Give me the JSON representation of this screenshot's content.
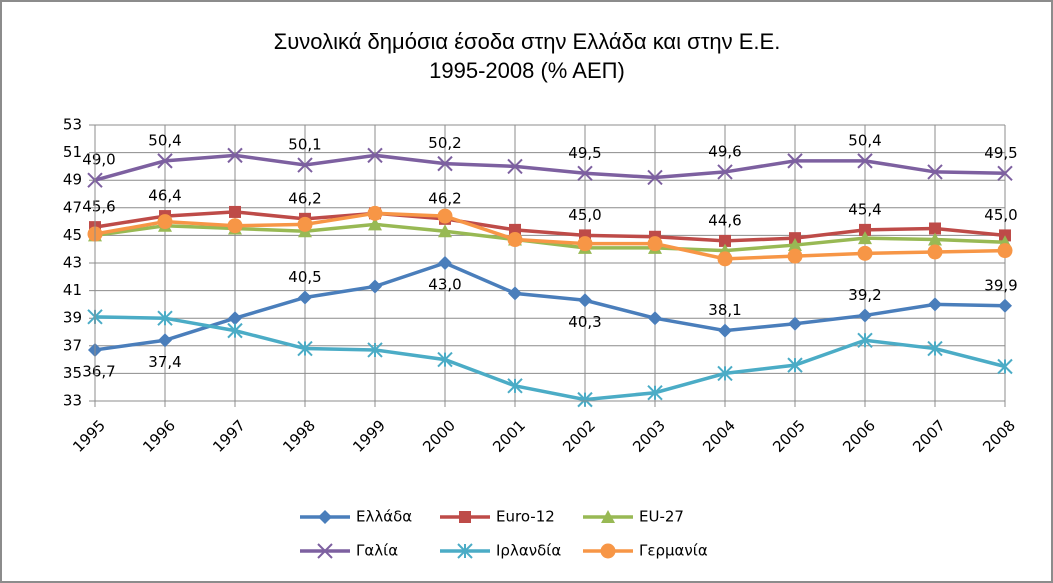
{
  "chart_data": {
    "type": "line",
    "title": "Συνολικά δημόσια έσοδα στην Ελλάδα και στην Ε.Ε.",
    "subtitle": "1995-2008 (% ΑΕΠ)",
    "categories": [
      "1995",
      "1996",
      "1997",
      "1998",
      "1999",
      "2000",
      "2001",
      "2002",
      "2003",
      "2004",
      "2005",
      "2006",
      "2007",
      "2008"
    ],
    "ylim": [
      33,
      53
    ],
    "yticks": [
      33,
      35,
      37,
      39,
      41,
      43,
      45,
      47,
      49,
      51,
      53
    ],
    "grid": true,
    "legend": "bottom",
    "series": [
      {
        "name": "Ελλάδα",
        "color": "#4a7ebb",
        "marker": "diamond",
        "values": [
          36.7,
          37.4,
          39.0,
          40.5,
          41.3,
          43.0,
          40.8,
          40.3,
          39.0,
          38.1,
          38.6,
          39.2,
          40.0,
          39.9
        ],
        "value_labels": [
          "36,7",
          "37,4",
          null,
          "40,5",
          null,
          "43,0",
          null,
          "40,3",
          null,
          "38,1",
          null,
          "39,2",
          null,
          "39,9"
        ]
      },
      {
        "name": "Euro-12",
        "color": "#be4b48",
        "marker": "square",
        "values": [
          45.6,
          46.4,
          46.7,
          46.2,
          46.6,
          46.2,
          45.4,
          45.0,
          44.9,
          44.6,
          44.8,
          45.4,
          45.5,
          45.0
        ],
        "value_labels": [
          "45,6",
          "46,4",
          null,
          "46,2",
          null,
          "46,2",
          null,
          "45,0",
          null,
          "44,6",
          null,
          "45,4",
          null,
          "45,0"
        ]
      },
      {
        "name": "EU-27",
        "color": "#98b954",
        "marker": "triangle",
        "values": [
          45.0,
          45.7,
          45.5,
          45.3,
          45.8,
          45.3,
          44.7,
          44.1,
          44.1,
          43.9,
          44.3,
          44.8,
          44.7,
          44.5
        ]
      },
      {
        "name": "Γαλία",
        "color": "#7d60a0",
        "marker": "x",
        "values": [
          49.0,
          50.4,
          50.8,
          50.1,
          50.8,
          50.2,
          50.0,
          49.5,
          49.2,
          49.6,
          50.4,
          50.4,
          49.6,
          49.5
        ],
        "value_labels": [
          "49,0",
          "50,4",
          null,
          "50,1",
          null,
          "50,2",
          null,
          "49,5",
          null,
          "49,6",
          null,
          "50,4",
          null,
          "49,5"
        ]
      },
      {
        "name": "Ιρλανδία",
        "color": "#4bacc6",
        "marker": "star",
        "values": [
          39.1,
          39.0,
          38.1,
          36.8,
          36.7,
          36.0,
          34.1,
          33.1,
          33.6,
          35.0,
          35.6,
          37.4,
          36.8,
          35.5
        ]
      },
      {
        "name": "Γερμανία",
        "color": "#f79646",
        "marker": "circle",
        "values": [
          45.1,
          46.0,
          45.7,
          45.8,
          46.6,
          46.4,
          44.7,
          44.4,
          44.4,
          43.3,
          43.5,
          43.7,
          43.8,
          43.9
        ]
      }
    ]
  }
}
